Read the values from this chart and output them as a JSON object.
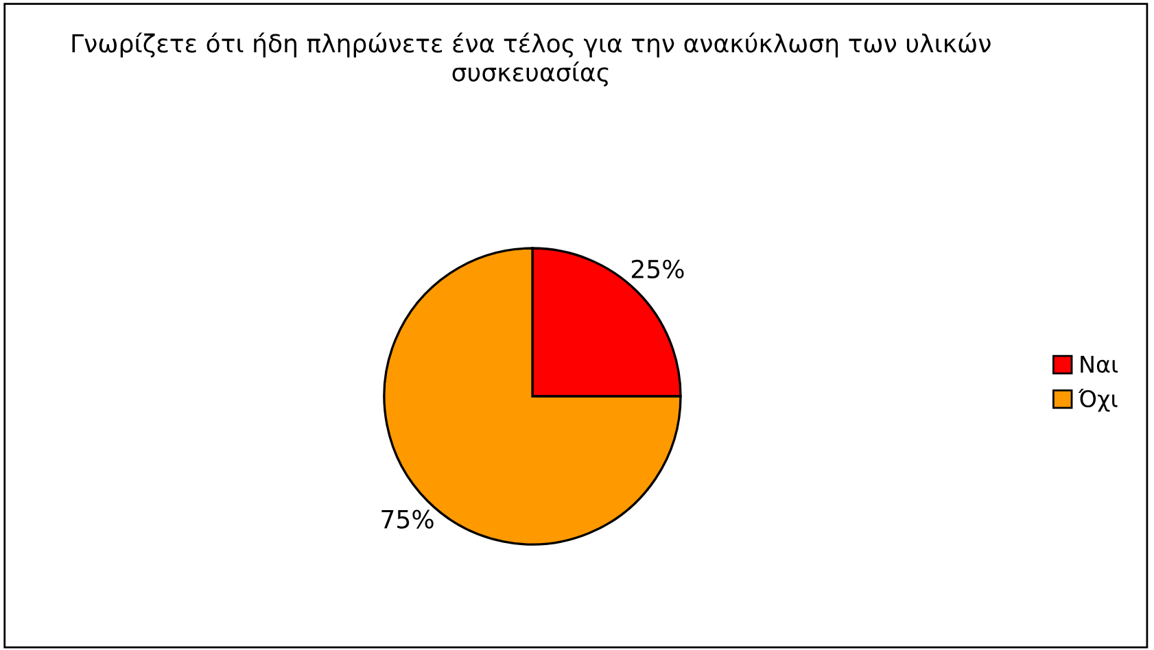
{
  "chart_data": {
    "type": "pie",
    "title": "Γνωρίζετε ότι ήδη πληρώνετε ένα τέλος για την ανακύκλωση των υλικών συσκευασίας",
    "categories": [
      "Ναι",
      "Όχι"
    ],
    "values": [
      25,
      75
    ],
    "colors": [
      "#ff0000",
      "#ff9900"
    ],
    "value_labels": [
      "25%",
      "75%"
    ],
    "legend": "right"
  }
}
